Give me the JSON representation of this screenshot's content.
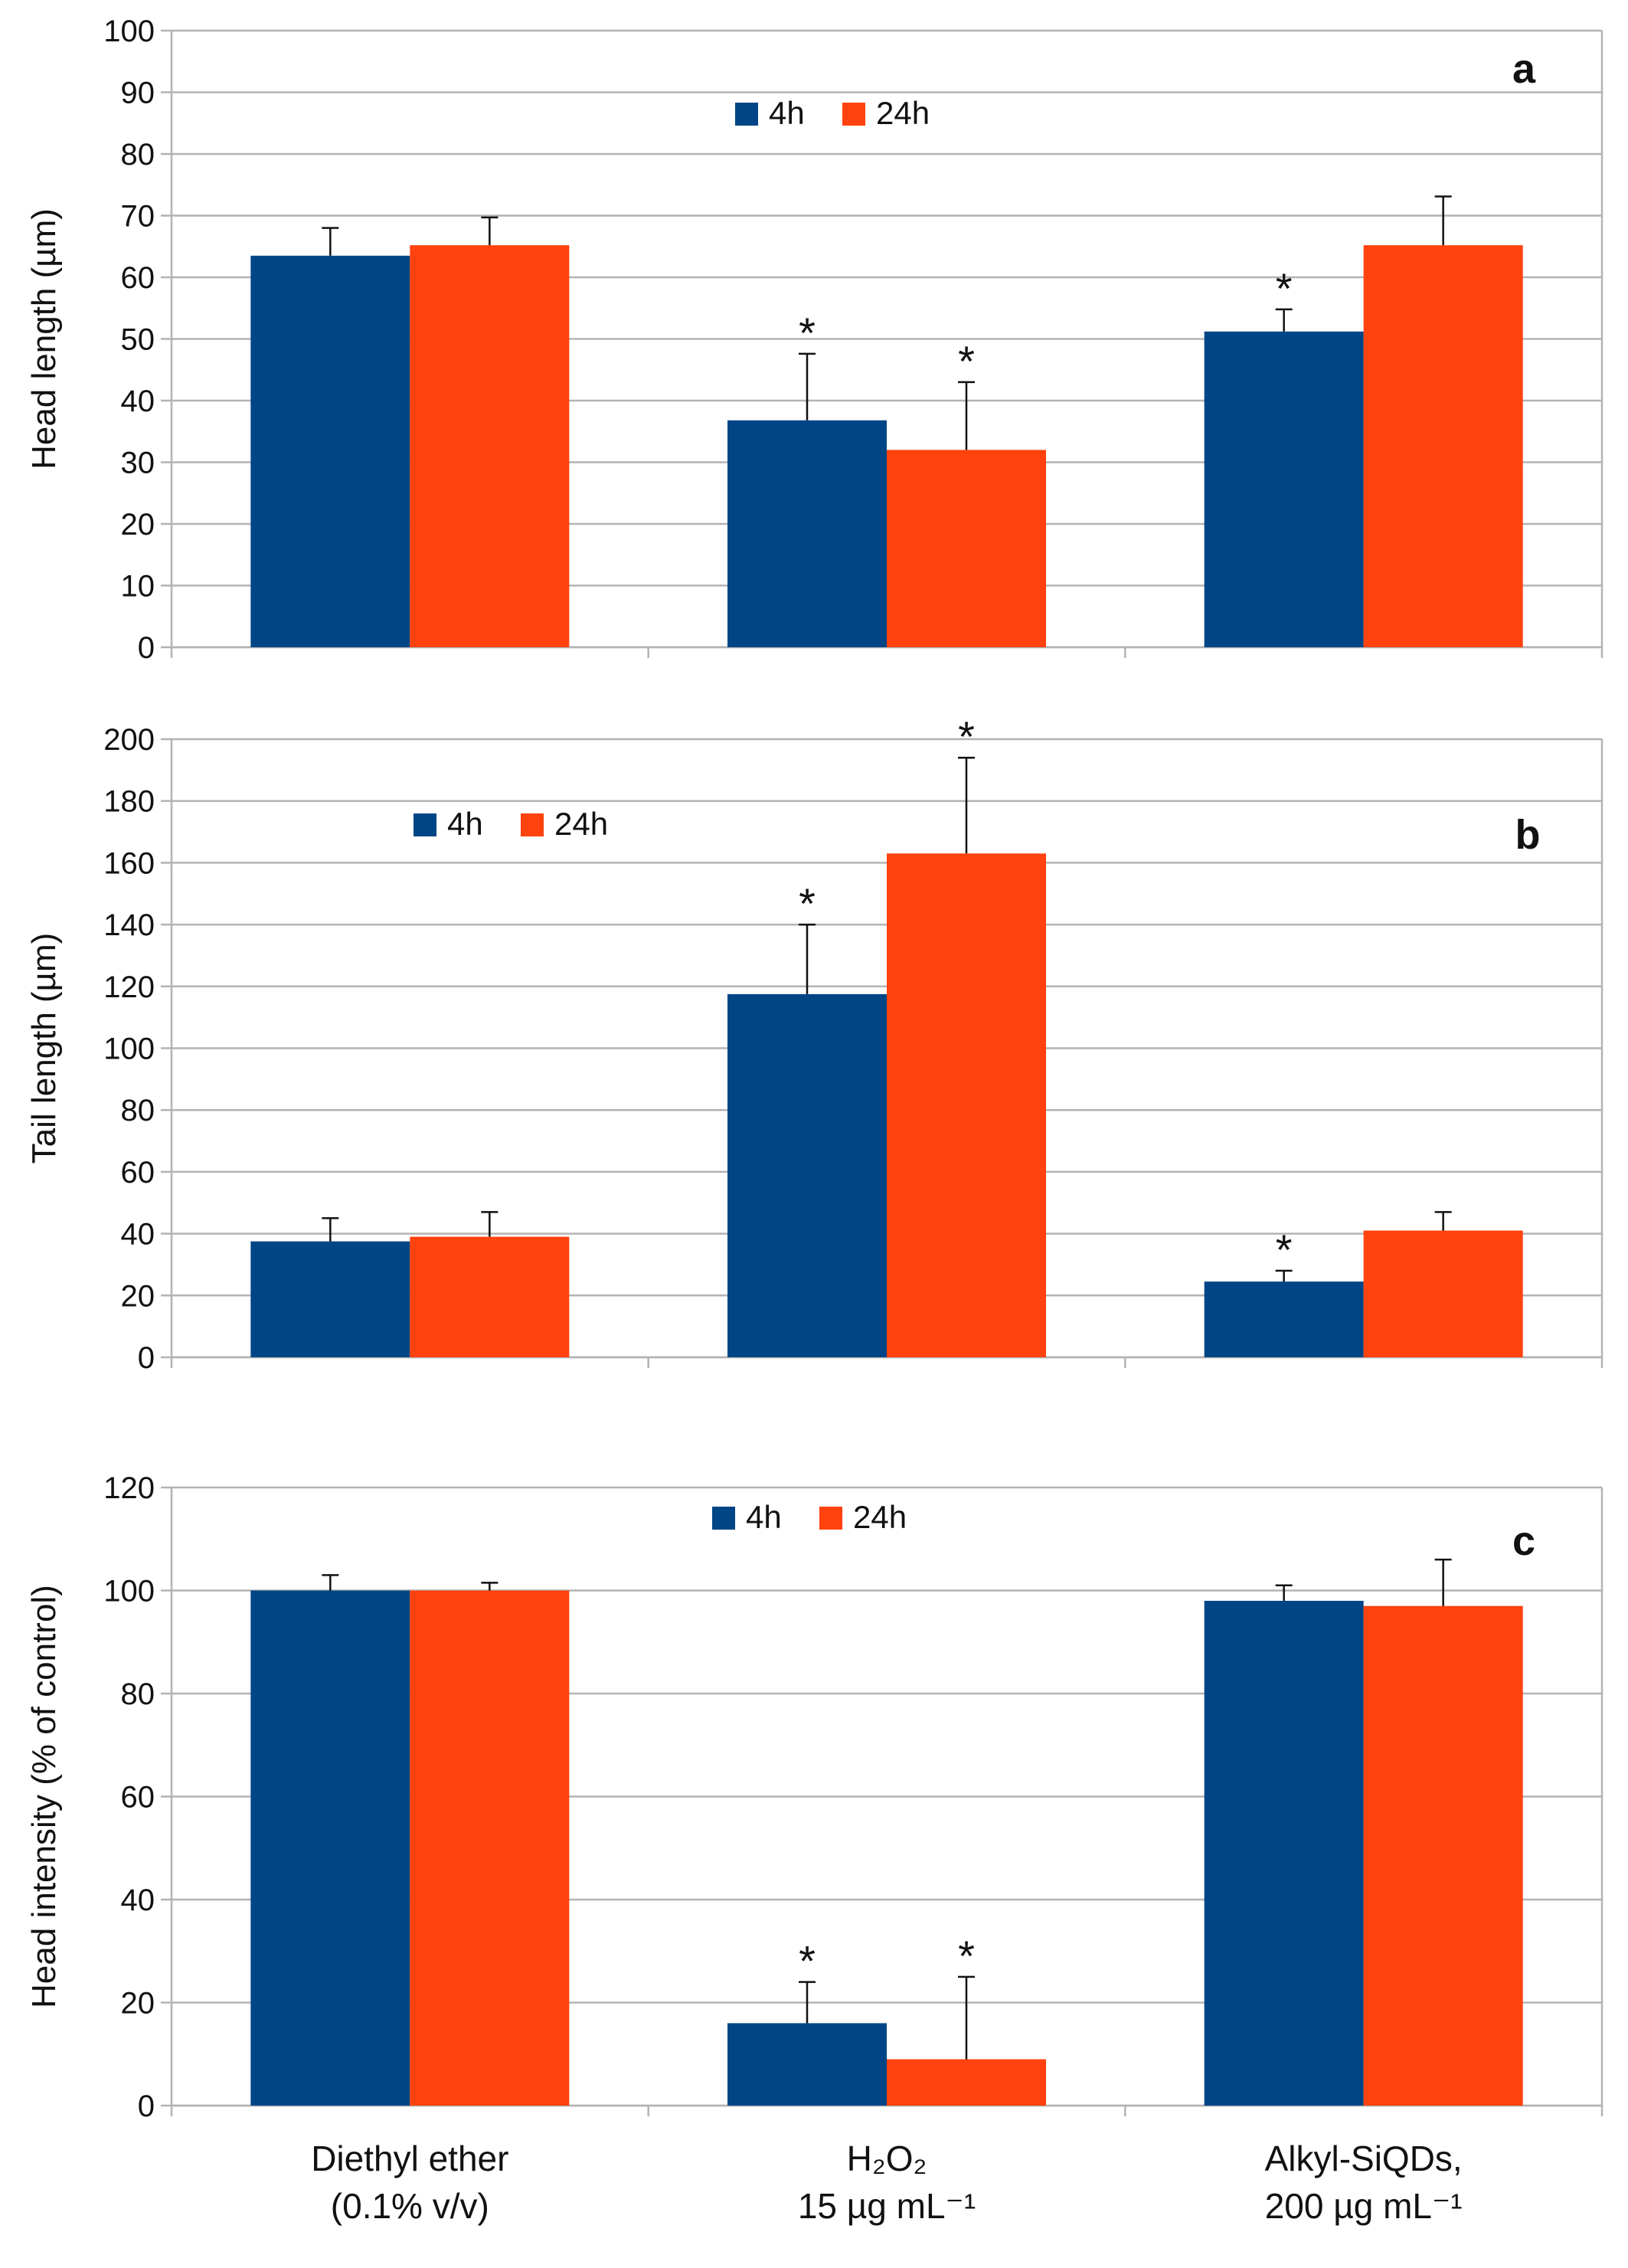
{
  "colors": {
    "4h": "#004586",
    "24h": "#ff420e",
    "grid": "#b3b3b3",
    "axis": "#b3b3b3"
  },
  "categories": [
    "Diethyl ether",
    "H2O2",
    "Alkyl-SiQDs,"
  ],
  "category_labels": [
    {
      "line1": "Diethyl ether",
      "line2": "(0.1% v/v)"
    },
    {
      "line1": "H₂O₂",
      "line2": "15 µg mL⁻¹"
    },
    {
      "line1": "Alkyl-SiQDs,",
      "line2": "200 µg mL⁻¹"
    }
  ],
  "legend": {
    "s1": "4h",
    "s2": "24h"
  },
  "chart_data": [
    {
      "type": "bar",
      "panel_label": "a",
      "ylabel": "Head length (µm)",
      "ylim": [
        0,
        100
      ],
      "yticks": [
        "0",
        "10",
        "20",
        "30",
        "40",
        "50",
        "60",
        "70",
        "80",
        "90",
        "100"
      ],
      "grid": true,
      "legend_position": "top-center",
      "categories": [
        "Diethyl ether",
        "H2O2",
        "Alkyl-SiQDs,"
      ],
      "series": [
        {
          "name": "4h",
          "values": [
            63.5,
            36.8,
            51.2
          ],
          "errors": [
            4.5,
            10.8,
            3.6
          ],
          "significant": [
            false,
            true,
            true
          ]
        },
        {
          "name": "24h",
          "values": [
            65.2,
            32.0,
            65.2
          ],
          "errors": [
            4.5,
            11.0,
            7.9
          ],
          "significant": [
            false,
            true,
            false
          ]
        }
      ]
    },
    {
      "type": "bar",
      "panel_label": "b",
      "ylabel": "Tail length (µm)",
      "ylim": [
        0,
        200
      ],
      "yticks": [
        "0",
        "20",
        "40",
        "60",
        "80",
        "100",
        "120",
        "140",
        "160",
        "180",
        "200"
      ],
      "grid": true,
      "legend_position": "top-left",
      "categories": [
        "Diethyl ether",
        "H2O2",
        "Alkyl-SiQDs,"
      ],
      "series": [
        {
          "name": "4h",
          "values": [
            37.5,
            117.5,
            24.5
          ],
          "errors": [
            7.5,
            22.5,
            3.5
          ],
          "significant": [
            false,
            true,
            true
          ]
        },
        {
          "name": "24h",
          "values": [
            39.0,
            163.0,
            41.0
          ],
          "errors": [
            8.0,
            31.0,
            6.0
          ],
          "significant": [
            false,
            true,
            false
          ]
        }
      ]
    },
    {
      "type": "bar",
      "panel_label": "c",
      "ylabel": "Head intensity (% of control)",
      "ylim": [
        0,
        120
      ],
      "yticks": [
        "0",
        "20",
        "40",
        "60",
        "80",
        "100",
        "120"
      ],
      "grid": true,
      "legend_position": "top-center",
      "categories": [
        "Diethyl ether",
        "H2O2",
        "Alkyl-SiQDs,"
      ],
      "series": [
        {
          "name": "4h",
          "values": [
            100.0,
            16.0,
            98.0
          ],
          "errors": [
            3.0,
            8.0,
            3.0
          ],
          "significant": [
            false,
            true,
            false
          ]
        },
        {
          "name": "24h",
          "values": [
            100.0,
            9.0,
            97.0
          ],
          "errors": [
            1.5,
            16.0,
            9.0
          ],
          "significant": [
            false,
            true,
            false
          ]
        }
      ]
    }
  ]
}
